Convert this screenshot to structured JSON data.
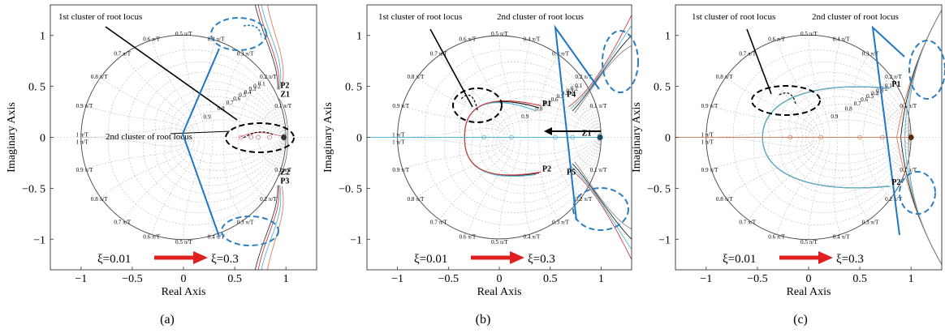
{
  "panels": [
    {
      "caption": "(a)",
      "cluster_labels": [
        "1st cluster of root locus",
        "2nd cluster of root locus"
      ],
      "point_labels": [
        "P2",
        "Z1",
        "Z2",
        "P3"
      ],
      "xi_start": "ξ=0.01",
      "xi_end": "ξ=0.3"
    },
    {
      "caption": "(b)",
      "cluster_labels": [
        "1st cluster of root locus",
        "2nd cluster of root locus"
      ],
      "point_labels": [
        "P1",
        "P4",
        "Z1",
        "P2",
        "P5"
      ],
      "xi_start": "ξ=0.01",
      "xi_end": "ξ=0.3"
    },
    {
      "caption": "(c)",
      "cluster_labels": [
        "1st cluster of root locus",
        "2nd cluster of root locus"
      ],
      "point_labels": [
        "P1",
        "P2"
      ],
      "xi_start": "ξ=0.01",
      "xi_end": "ξ=0.3"
    }
  ],
  "chart_data": [
    {
      "type": "scatter",
      "title": "",
      "xlabel": "Real Axis",
      "ylabel": "Imaginary Axis",
      "xlim": [
        -1.3,
        1.3
      ],
      "ylim": [
        -1.3,
        1.3
      ],
      "xticks": [
        -1,
        -0.5,
        0,
        0.5,
        1
      ],
      "xtick_labels": [
        "−1",
        "−0.5",
        "0",
        "0.5",
        "1"
      ],
      "yticks": [
        1,
        0.5,
        0,
        -0.5,
        -1
      ],
      "ytick_labels": [
        "1",
        "0. 5",
        "0",
        "−0. 5",
        "−1"
      ],
      "grid": "zgrid",
      "zeta_labels": [
        "0.1",
        "0.2",
        "0.3",
        "0.4",
        "0.5",
        "0.6",
        "0.7",
        "0.8",
        "0.9"
      ],
      "wn_labels": [
        "0.1 π/T",
        "0.2 π/T",
        "0.3 π/T",
        "0.4 π/T",
        "0.5 π/T",
        "0.6 π/T",
        "0.7 π/T",
        "0.8 π/T",
        "0.9 π/T",
        "1 π/T"
      ],
      "points": [
        {
          "label": "P2",
          "x": 0.93,
          "y": 0.47
        },
        {
          "label": "Z1",
          "x": 0.93,
          "y": 0.38
        },
        {
          "label": "Z2",
          "x": 0.93,
          "y": -0.38
        },
        {
          "label": "P3",
          "x": 0.93,
          "y": -0.47
        }
      ]
    },
    {
      "type": "scatter",
      "title": "",
      "xlabel": "Real Axis",
      "ylabel": "Imaginary Axis",
      "xlim": [
        -1.3,
        1.3
      ],
      "ylim": [
        -1.3,
        1.3
      ],
      "xticks": [
        -1,
        -0.5,
        0,
        0.5,
        1
      ],
      "xtick_labels": [
        "−1",
        "−0.5",
        "0",
        "0.5",
        "1"
      ],
      "yticks": [
        1,
        0.5,
        0,
        -0.5,
        -1
      ],
      "ytick_labels": [
        "1",
        "0. 5",
        "0",
        "−0. 5",
        "−1"
      ],
      "grid": "zgrid",
      "zeta_labels": [
        "0.1",
        "0.2",
        "0.3",
        "0.4",
        "0.5",
        "0.6",
        "0.7",
        "0.8",
        "0.9"
      ],
      "wn_labels": [
        "0.1 π/T",
        "0.2 π/T",
        "0.3 π/T",
        "0.4 π/T",
        "0.5 π/T",
        "0.6 π/T",
        "0.7 π/T",
        "0.8 π/T",
        "0.9 π/T",
        "1 π/T"
      ],
      "points": [
        {
          "label": "P1",
          "x": 0.39,
          "y": 0.29
        },
        {
          "label": "P4",
          "x": 0.63,
          "y": 0.38
        },
        {
          "label": "Z1",
          "x": 0.78,
          "y": 0.0
        },
        {
          "label": "P2",
          "x": 0.39,
          "y": -0.35
        },
        {
          "label": "P5",
          "x": 0.63,
          "y": -0.38
        }
      ]
    },
    {
      "type": "scatter",
      "title": "",
      "xlabel": "Real Axis",
      "ylabel": "Imaginary Axis",
      "xlim": [
        -1.3,
        1.3
      ],
      "ylim": [
        -1.3,
        1.3
      ],
      "xticks": [
        -1,
        -0.5,
        0,
        0.5,
        1
      ],
      "xtick_labels": [
        "−1",
        "−0.5",
        "0",
        "0.5",
        "1"
      ],
      "yticks": [
        1,
        0.5,
        0,
        -0.5,
        -1
      ],
      "ytick_labels": [
        "1",
        "0. 5",
        "0",
        "−0. 5",
        "−1"
      ],
      "grid": "zgrid",
      "zeta_labels": [
        "0.1",
        "0.2",
        "0.3",
        "0.4",
        "0.5",
        "0.6",
        "0.7",
        "0.8",
        "0.9"
      ],
      "wn_labels": [
        "0.1 π/T",
        "0.2 π/T",
        "0.3 π/T",
        "0.4 π/T",
        "0.5 π/T",
        "0.6 π/T",
        "0.7 π/T",
        "0.8 π/T",
        "0.9 π/T",
        "1 π/T"
      ],
      "points": [
        {
          "label": "P1",
          "x": 0.78,
          "y": 0.48
        },
        {
          "label": "P2",
          "x": 0.78,
          "y": -0.48
        }
      ]
    }
  ]
}
